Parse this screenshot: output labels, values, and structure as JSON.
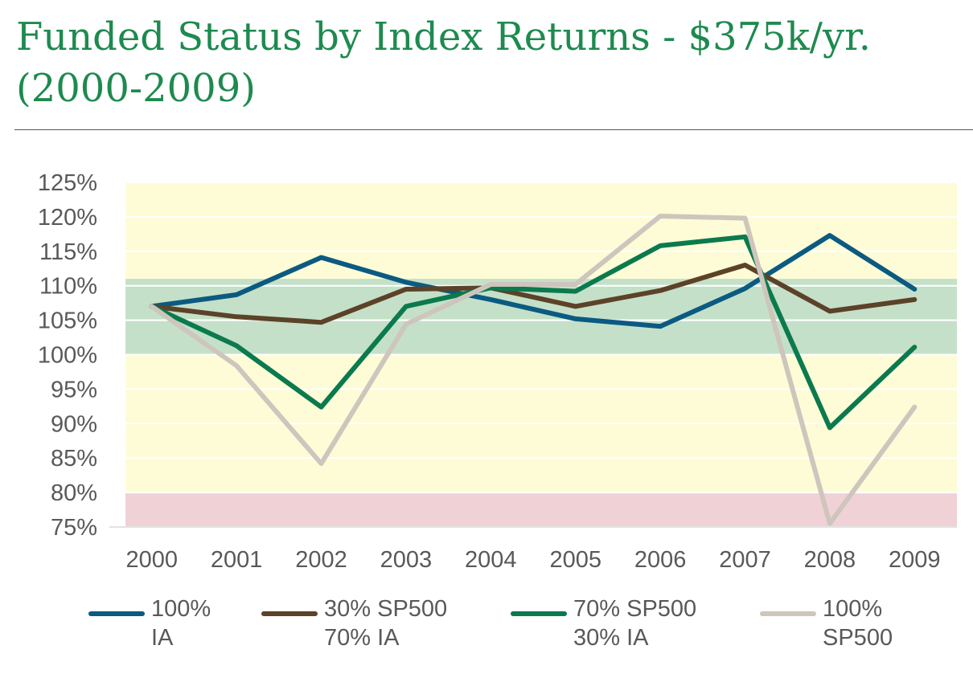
{
  "slide": {
    "title": "Funded Status by Index Returns - $375k/yr. (2000-2009)"
  },
  "chart_data": {
    "type": "line",
    "title": "",
    "xlabel": "",
    "ylabel": "",
    "x": [
      "2000",
      "2001",
      "2002",
      "2003",
      "2004",
      "2005",
      "2006",
      "2007",
      "2008",
      "2009"
    ],
    "yticks": [
      "75%",
      "80%",
      "85%",
      "90%",
      "95%",
      "100%",
      "105%",
      "110%",
      "115%",
      "120%",
      "125%"
    ],
    "ylim": [
      75,
      125
    ],
    "grid": true,
    "legend": "bottom",
    "bands": [
      {
        "from": 80,
        "to": 125,
        "color": "#fdfcd6"
      },
      {
        "from": 100,
        "to": 111,
        "color": "#c5e0c8"
      },
      {
        "from": 75,
        "to": 80,
        "color": "#f0d2d6"
      }
    ],
    "series": [
      {
        "name": "100%\nIA",
        "color": "#0b5a82",
        "values": [
          107,
          108.7,
          114.1,
          110.5,
          108,
          105.2,
          104.1,
          109.6,
          117.3,
          109.5
        ]
      },
      {
        "name": "30% SP500\n70% IA",
        "color": "#5c4228",
        "values": [
          107,
          105.5,
          104.7,
          109.5,
          109.7,
          107,
          109.3,
          113,
          106.3,
          108
        ]
      },
      {
        "name": "70% SP500\n30% IA",
        "color": "#0b7a4e",
        "values": [
          107,
          101.3,
          92.4,
          107,
          109.7,
          109.2,
          115.8,
          117.1,
          89.4,
          101.1
        ]
      },
      {
        "name": "100%\nSP500",
        "color": "#cec5bd",
        "values": [
          107,
          98.4,
          84.2,
          104.4,
          110.2,
          110.2,
          120.1,
          119.8,
          75.5,
          92.4
        ]
      }
    ]
  }
}
